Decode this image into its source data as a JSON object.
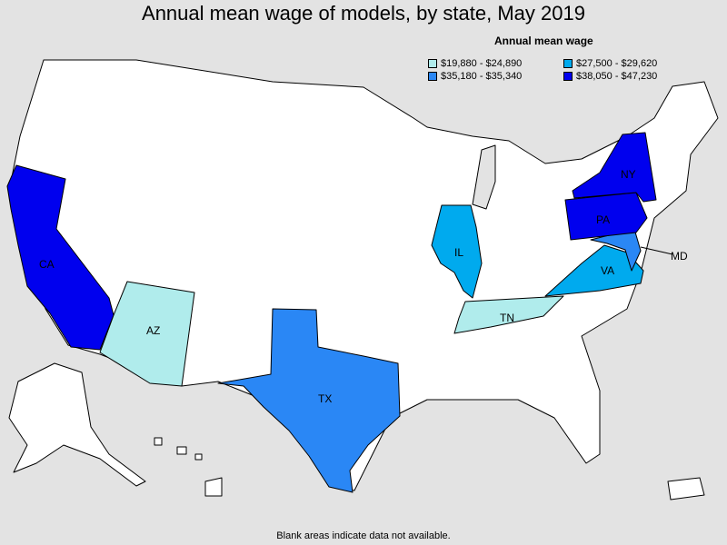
{
  "title": "Annual mean wage of models, by state, May 2019",
  "legend": {
    "title": "Annual mean wage",
    "items": [
      {
        "label": "$19,880 - $24,890",
        "color": "#b0ecec"
      },
      {
        "label": "$27,500 - $29,620",
        "color": "#00aaee"
      },
      {
        "label": "$35,180 - $35,340",
        "color": "#2a87f5"
      },
      {
        "label": "$38,050 - $47,230",
        "color": "#0000ee"
      }
    ]
  },
  "colors": {
    "no_data": "#ffffff",
    "background": "#e3e3e3",
    "lake": "#e3e3e3"
  },
  "state_labels": {
    "CA": "CA",
    "AZ": "AZ",
    "TX": "TX",
    "IL": "IL",
    "TN": "TN",
    "VA": "VA",
    "MD": "MD",
    "PA": "PA",
    "NY": "NY"
  },
  "footnote": "Blank areas indicate data not available."
}
